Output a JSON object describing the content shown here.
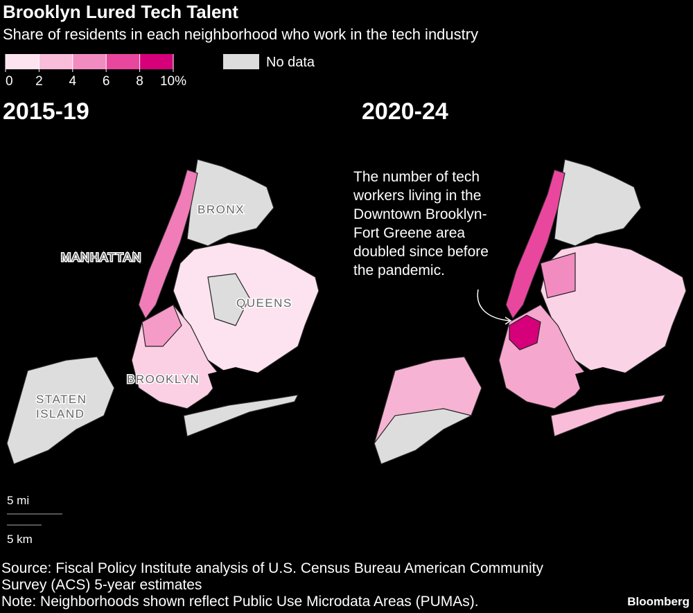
{
  "header": {
    "title": "Brooklyn Lured Tech Talent",
    "subtitle": "Share of residents in each neighborhood who work in the tech industry"
  },
  "legend": {
    "ticks": [
      0,
      2,
      4,
      6,
      8,
      {
        "value": 10,
        "label": "10%"
      }
    ],
    "colors": [
      "#fde3ef",
      "#f9bcd9",
      "#f28cc0",
      "#e9479d",
      "#d6007a"
    ],
    "no_data": "No data",
    "no_data_color": "#dddddd"
  },
  "maps": [
    {
      "title": "2015-19",
      "labels": [
        {
          "lines": [
            "MANHATTAN"
          ]
        },
        {
          "lines": [
            "BRONX"
          ]
        },
        {
          "lines": [
            "QUEENS"
          ]
        },
        {
          "lines": [
            "BROOKLYN"
          ]
        },
        {
          "lines": [
            "STATEN",
            "ISLAND"
          ]
        }
      ]
    },
    {
      "title": "2020-24",
      "annotation": [
        "The number of tech",
        "workers living in the",
        "Downtown Brooklyn-",
        "Fort Greene area",
        "doubled since before",
        "the pandemic."
      ]
    }
  ],
  "scale": {
    "miles": "5 mi",
    "km": "5 km"
  },
  "source": "Source: Fiscal Policy Institute analysis of U.S. Census Bureau American Community Survey (ACS) 5-year estimates",
  "note": "Note: Neighborhoods shown reflect Public Use Microdata Areas (PUMAs).",
  "brand": "Bloomberg"
}
